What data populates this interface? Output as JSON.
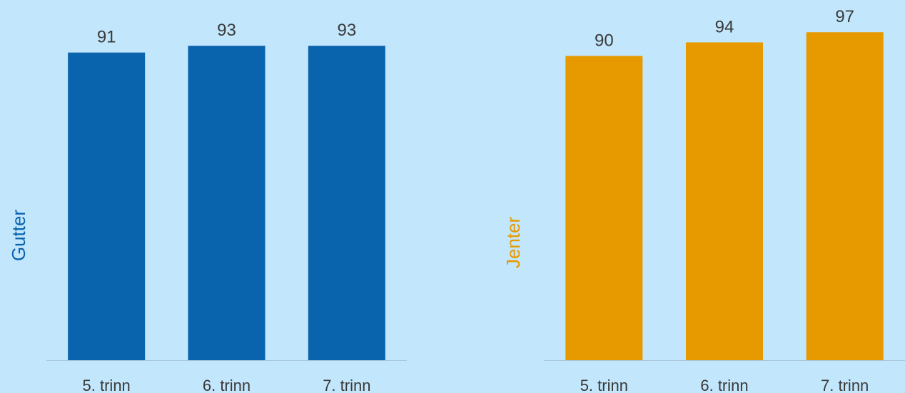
{
  "background_color": "#c2e6fb",
  "axis_line_color": "#a9c6da",
  "text_color": "#3a3a3a",
  "chart_data": [
    {
      "type": "bar",
      "ylabel": "Gutter",
      "categories": [
        "5. trinn",
        "6. trinn",
        "7. trinn"
      ],
      "values": [
        91,
        93,
        93
      ],
      "color": "#0a64ad",
      "data_labels": true,
      "grid": false,
      "legend": "none"
    },
    {
      "type": "bar",
      "ylabel": "Jenter",
      "categories": [
        "5. trinn",
        "6. trinn",
        "7. trinn"
      ],
      "values": [
        90,
        94,
        97
      ],
      "color": "#e69a00",
      "data_labels": true,
      "grid": false,
      "legend": "none"
    }
  ]
}
